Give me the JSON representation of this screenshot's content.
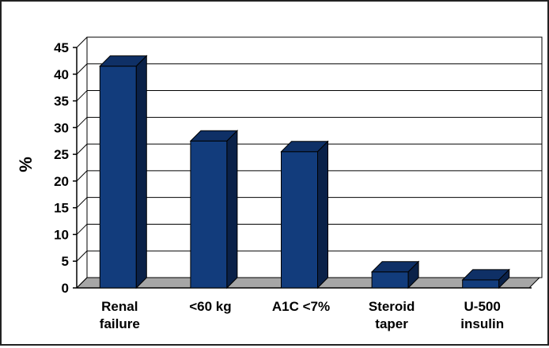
{
  "chart_data": {
    "type": "bar",
    "title": "",
    "xlabel": "",
    "ylabel": "%",
    "ylim": [
      0,
      45
    ],
    "yticks": [
      0,
      5,
      10,
      15,
      20,
      25,
      30,
      35,
      40,
      45
    ],
    "grid": true,
    "legend": "none",
    "three_d": true,
    "categories": [
      [
        "Renal",
        "failure"
      ],
      [
        "<60 kg"
      ],
      [
        "A1C <7%"
      ],
      [
        "Steroid",
        "taper"
      ],
      [
        "U-500",
        "insulin"
      ]
    ],
    "values": [
      41.5,
      27.5,
      25.5,
      3,
      1.5
    ],
    "colors": {
      "bar_front": "#123c7c",
      "bar_top": "#0f3066",
      "bar_side": "#0a2148",
      "floor": "#a6a6a6",
      "grid": "#000000"
    }
  }
}
